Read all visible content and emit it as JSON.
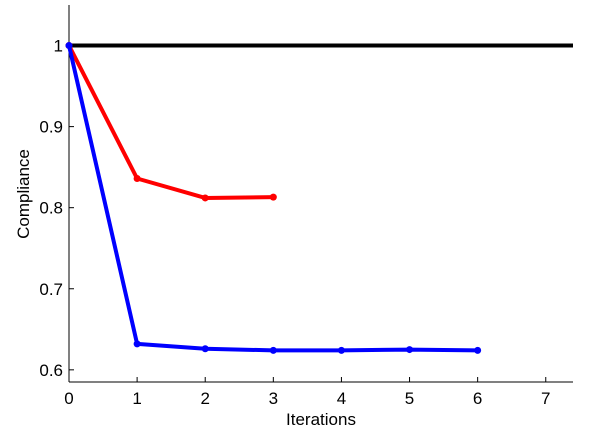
{
  "chart_data": {
    "type": "line",
    "xlabel": "Iterations",
    "ylabel": "Compliance",
    "xlim": [
      0,
      7.4
    ],
    "ylim": [
      0.585,
      1.05
    ],
    "xticks": [
      0,
      1,
      2,
      3,
      4,
      5,
      6,
      7
    ],
    "yticks": [
      0.6,
      0.7,
      0.8,
      0.9,
      1
    ],
    "series": [
      {
        "color": "#000000",
        "markers": false,
        "x": [
          0,
          7.4
        ],
        "values": [
          1,
          1
        ]
      },
      {
        "color": "#ff0000",
        "markers": true,
        "x": [
          0,
          1,
          2,
          3
        ],
        "values": [
          1,
          0.836,
          0.812,
          0.813
        ]
      },
      {
        "color": "#0000ff",
        "markers": true,
        "x": [
          0,
          1,
          2,
          3,
          4,
          5,
          6
        ],
        "values": [
          1,
          0.632,
          0.626,
          0.624,
          0.624,
          0.625,
          0.624
        ]
      }
    ]
  }
}
